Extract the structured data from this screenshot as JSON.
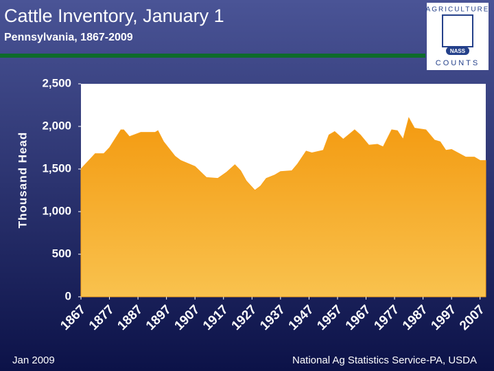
{
  "chart_data": {
    "type": "area",
    "title": "Cattle Inventory, January 1",
    "subtitle": "Pennsylvania, 1867-2009",
    "y_label": "Thousand Head",
    "x": [
      1867,
      1872,
      1875,
      1877,
      1881,
      1882,
      1884,
      1888,
      1890,
      1893,
      1894,
      1896,
      1900,
      1902,
      1907,
      1911,
      1915,
      1918,
      1921,
      1923,
      1925,
      1928,
      1930,
      1932,
      1935,
      1937,
      1941,
      1943,
      1946,
      1948,
      1952,
      1954,
      1956,
      1959,
      1963,
      1965,
      1968,
      1971,
      1973,
      1976,
      1978,
      1980,
      1982,
      1984,
      1988,
      1991,
      1993,
      1995,
      1997,
      2002,
      2005,
      2007,
      2009
    ],
    "values": [
      1500,
      1680,
      1680,
      1750,
      1960,
      1960,
      1880,
      1930,
      1930,
      1930,
      1950,
      1820,
      1650,
      1600,
      1530,
      1400,
      1390,
      1460,
      1550,
      1480,
      1360,
      1250,
      1300,
      1390,
      1430,
      1470,
      1480,
      1560,
      1710,
      1690,
      1720,
      1900,
      1940,
      1850,
      1960,
      1900,
      1780,
      1790,
      1760,
      1960,
      1950,
      1850,
      2100,
      1980,
      1960,
      1840,
      1820,
      1720,
      1730,
      1640,
      1640,
      1600,
      1600
    ],
    "color": "#f9a21a",
    "xlim": [
      1867,
      2009
    ],
    "xticks": [
      1867,
      1877,
      1887,
      1897,
      1907,
      1917,
      1927,
      1937,
      1947,
      1957,
      1967,
      1977,
      1987,
      1997,
      2007
    ],
    "ylim": [
      0,
      2500
    ],
    "yticks": [
      0,
      500,
      {
        "value": 1000,
        "label": "1,000"
      },
      {
        "value": 1500,
        "label": "1,500"
      },
      {
        "value": 2000,
        "label": "2,000"
      },
      {
        "value": 2500,
        "label": "2,500"
      }
    ],
    "footer_left": "Jan 2009",
    "source": "National Ag Statistics Service-PA, USDA"
  },
  "logo": {
    "top": "AGRICULTURE",
    "bottom": "COUNTS",
    "badge": "NASS"
  }
}
